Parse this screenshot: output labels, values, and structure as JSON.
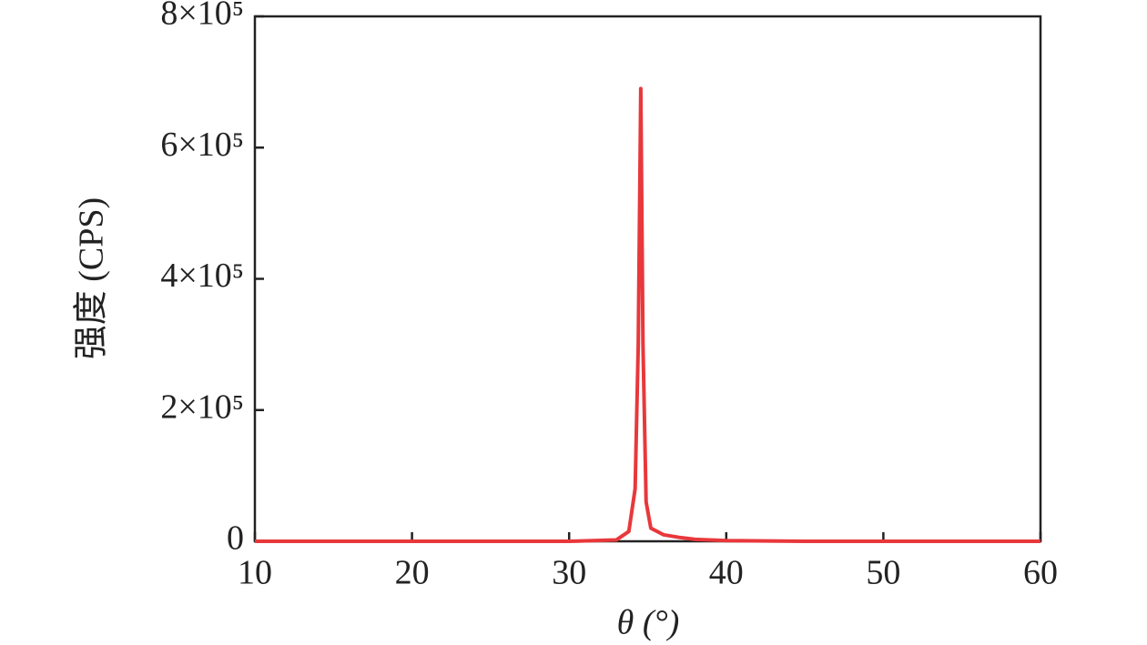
{
  "chart_data": {
    "type": "line",
    "xlabel": "θ (°)",
    "ylabel": "强度 (CPS)",
    "xlim": [
      10,
      60
    ],
    "xticks": [
      10,
      20,
      30,
      40,
      50,
      60
    ],
    "ylim": [
      0,
      800000
    ],
    "yticks": [
      0,
      {
        "value": 200000,
        "label": "2×10⁵"
      },
      {
        "value": 400000,
        "label": "4×10⁵"
      },
      {
        "value": 600000,
        "label": "6×10⁵"
      },
      {
        "value": 800000,
        "label": "8×10⁵"
      }
    ],
    "series": [
      {
        "color": "#e8383b",
        "x": [
          10,
          20,
          30,
          33,
          33.8,
          34.2,
          34.4,
          34.56,
          34.7,
          34.9,
          35.2,
          36,
          37,
          38,
          40,
          45,
          60
        ],
        "values": [
          0,
          0,
          0,
          2000,
          15000,
          80000,
          300000,
          690000,
          300000,
          60000,
          20000,
          10000,
          6000,
          3000,
          1000,
          0,
          0
        ]
      }
    ]
  }
}
